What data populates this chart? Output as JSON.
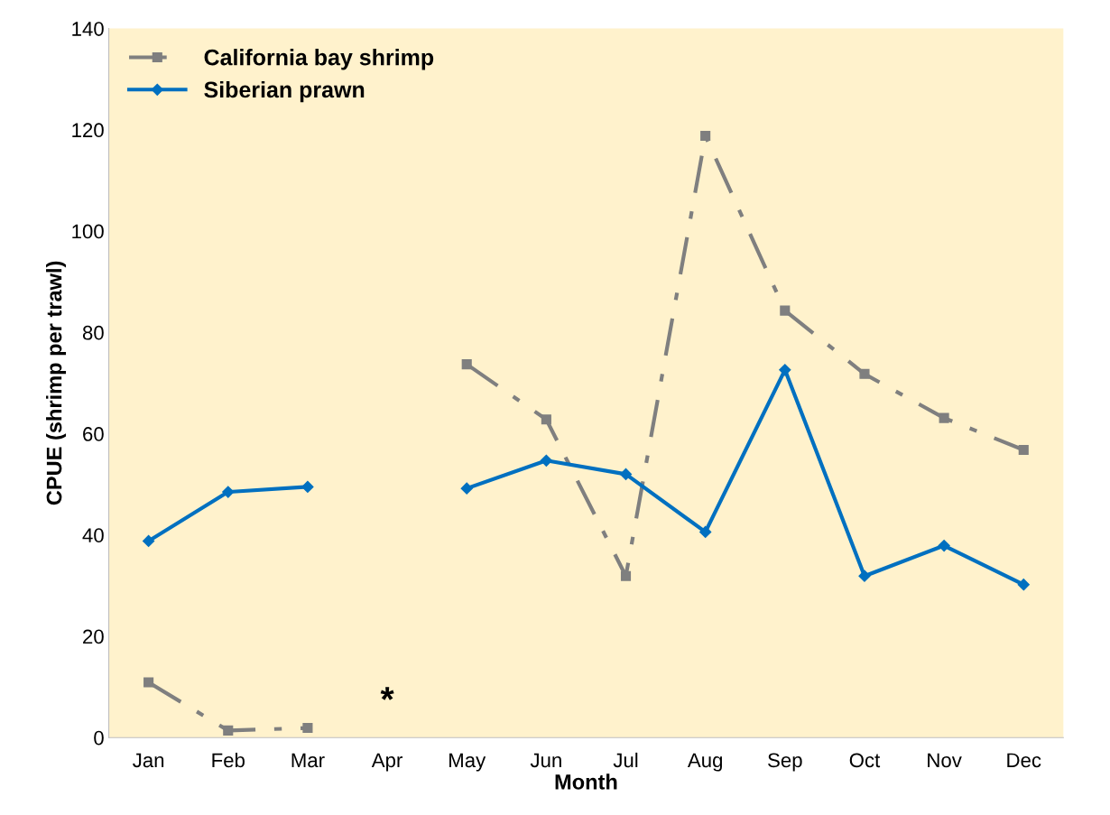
{
  "chart_data": {
    "type": "line",
    "xlabel": "Month",
    "ylabel": "CPUE (shrimp per trawl)",
    "categories": [
      "Jan",
      "Feb",
      "Mar",
      "Apr",
      "May",
      "Jun",
      "Jul",
      "Aug",
      "Sep",
      "Oct",
      "Nov",
      "Dec"
    ],
    "series": [
      {
        "name": "California bay shrimp",
        "color": "#7f7f7f",
        "marker": "square",
        "line_style": "dashed",
        "values": [
          10.9,
          1.4,
          1.9,
          null,
          73.7,
          62.8,
          31.9,
          118.8,
          84.3,
          71.8,
          63.1,
          56.8
        ]
      },
      {
        "name": "Siberian prawn",
        "color": "#0070c0",
        "marker": "diamond",
        "line_style": "solid",
        "values": [
          38.8,
          48.5,
          49.5,
          null,
          49.2,
          54.7,
          52.0,
          40.6,
          72.6,
          31.9,
          37.9,
          30.2
        ]
      }
    ],
    "ylim": [
      0,
      140
    ],
    "yticks": [
      0,
      20,
      40,
      60,
      80,
      100,
      120,
      140
    ],
    "annotations": [
      "*"
    ],
    "grid": false,
    "legend": "top left"
  }
}
